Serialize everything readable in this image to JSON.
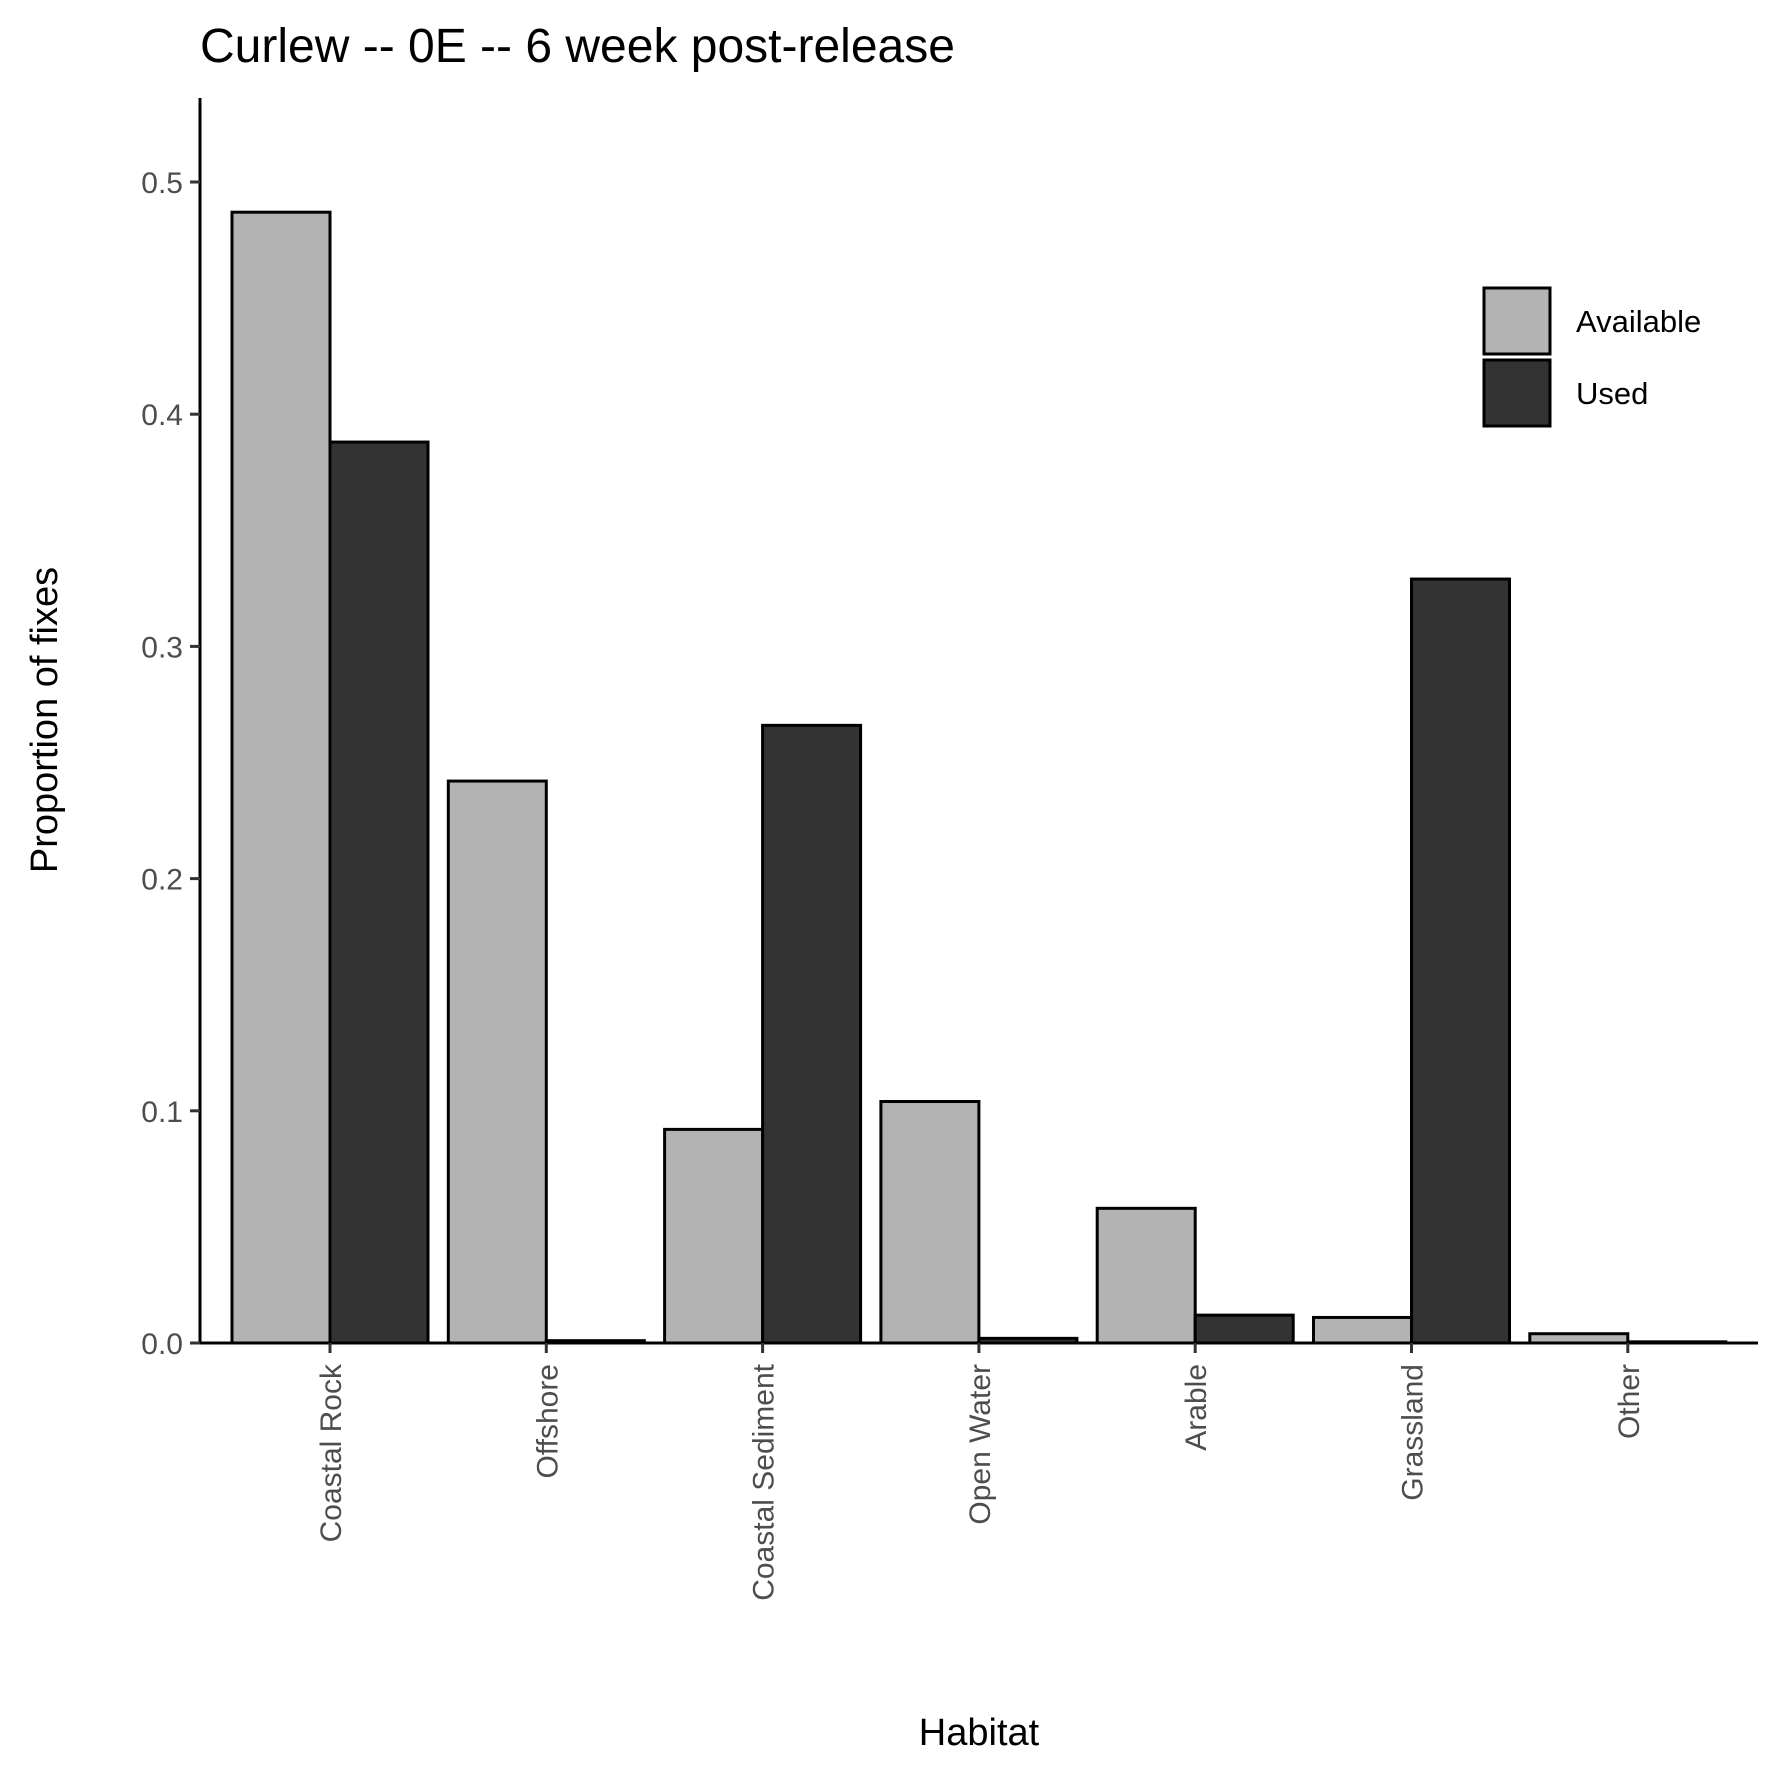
{
  "chart_data": {
    "type": "bar",
    "title": "Curlew -- 0E -- 6 week post-release",
    "xlabel": "Habitat",
    "ylabel": "Proportion of fixes",
    "categories": [
      "Coastal Rock",
      "Offshore",
      "Coastal Sediment",
      "Open Water",
      "Arable",
      "Grassland",
      "Other"
    ],
    "series": [
      {
        "name": "Available",
        "color": "#b3b3b3",
        "values": [
          0.487,
          0.242,
          0.092,
          0.104,
          0.058,
          0.011,
          0.004
        ]
      },
      {
        "name": "Used",
        "color": "#333333",
        "values": [
          0.388,
          0.001,
          0.266,
          0.002,
          0.012,
          0.329,
          0.0005
        ]
      }
    ],
    "ylim": [
      0,
      0.535
    ],
    "yticks": [
      0.0,
      0.1,
      0.2,
      0.3,
      0.4,
      0.5
    ],
    "ytick_labels": [
      "0.0",
      "0.1",
      "0.2",
      "0.3",
      "0.4",
      "0.5"
    ],
    "grid": false,
    "legend_position": "top-right"
  }
}
